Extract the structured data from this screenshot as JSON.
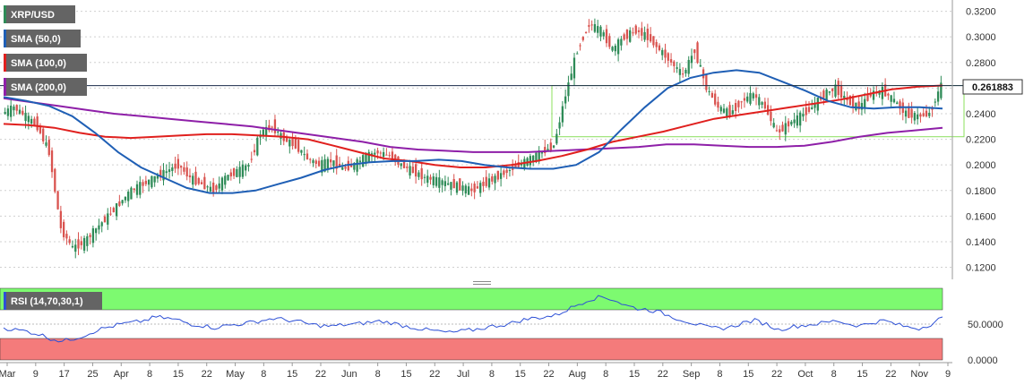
{
  "legend": {
    "symbol": "XRP/USD",
    "sma50": "SMA (50,0)",
    "sma100": "SMA (100,0)",
    "sma200": "SMA (200,0)",
    "rsi": "RSI (14,70,30,1)"
  },
  "colors": {
    "up": "#2e8b57",
    "down": "#d9534f",
    "sma50": "#1f5fb5",
    "sma100": "#e0201e",
    "sma200": "#8e1fa8",
    "rsi_line": "#2c4fd6",
    "overbought": "#7dfa70",
    "oversold": "#f47b7b",
    "box": "#8be05e"
  },
  "price_badge": "0.261883",
  "chart_data": {
    "type": "candlestick",
    "y_ticks": [
      "0.3200",
      "0.3000",
      "0.2800",
      "0.2600",
      "0.2400",
      "0.2200",
      "0.2000",
      "0.1800",
      "0.1600",
      "0.1400",
      "0.1200"
    ],
    "ylim": [
      0.112,
      0.326
    ],
    "x_ticks": [
      "Mar",
      "9",
      "17",
      "25",
      "Apr",
      "8",
      "15",
      "22",
      "May",
      "8",
      "15",
      "22",
      "Jun",
      "8",
      "15",
      "22",
      "Jul",
      "8",
      "15",
      "22",
      "Aug",
      "8",
      "15",
      "22",
      "Sep",
      "8",
      "15",
      "22",
      "Oct",
      "8",
      "15",
      "22",
      "Nov",
      "9"
    ],
    "close_path": [
      0.24,
      0.245,
      0.238,
      0.23,
      0.21,
      0.15,
      0.135,
      0.14,
      0.15,
      0.16,
      0.17,
      0.18,
      0.185,
      0.19,
      0.195,
      0.2,
      0.19,
      0.185,
      0.18,
      0.19,
      0.195,
      0.2,
      0.225,
      0.23,
      0.22,
      0.215,
      0.205,
      0.2,
      0.203,
      0.197,
      0.2,
      0.207,
      0.21,
      0.207,
      0.2,
      0.195,
      0.19,
      0.188,
      0.185,
      0.183,
      0.18,
      0.185,
      0.19,
      0.195,
      0.2,
      0.205,
      0.21,
      0.215,
      0.255,
      0.29,
      0.31,
      0.305,
      0.29,
      0.3,
      0.305,
      0.3,
      0.29,
      0.28,
      0.27,
      0.29,
      0.26,
      0.245,
      0.24,
      0.25,
      0.255,
      0.245,
      0.225,
      0.232,
      0.238,
      0.245,
      0.255,
      0.26,
      0.25,
      0.245,
      0.255,
      0.258,
      0.25,
      0.24,
      0.238,
      0.24,
      0.262
    ],
    "sma50": [
      0.253,
      0.25,
      0.246,
      0.238,
      0.225,
      0.21,
      0.198,
      0.19,
      0.182,
      0.178,
      0.178,
      0.18,
      0.185,
      0.19,
      0.196,
      0.2,
      0.202,
      0.203,
      0.203,
      0.204,
      0.203,
      0.2,
      0.198,
      0.197,
      0.197,
      0.2,
      0.21,
      0.228,
      0.245,
      0.26,
      0.268,
      0.272,
      0.274,
      0.272,
      0.265,
      0.258,
      0.25,
      0.245,
      0.244,
      0.245,
      0.245,
      0.244
    ],
    "sma100": [
      0.232,
      0.231,
      0.229,
      0.225,
      0.222,
      0.221,
      0.222,
      0.223,
      0.224,
      0.224,
      0.223,
      0.222,
      0.22,
      0.215,
      0.21,
      0.205,
      0.203,
      0.2,
      0.198,
      0.198,
      0.2,
      0.203,
      0.207,
      0.212,
      0.218,
      0.222,
      0.226,
      0.231,
      0.236,
      0.239,
      0.242,
      0.245,
      0.248,
      0.251,
      0.255,
      0.259,
      0.261,
      0.262
    ],
    "sma200": [
      0.252,
      0.249,
      0.246,
      0.243,
      0.24,
      0.238,
      0.236,
      0.234,
      0.232,
      0.23,
      0.227,
      0.224,
      0.221,
      0.218,
      0.214,
      0.212,
      0.211,
      0.21,
      0.21,
      0.21,
      0.211,
      0.212,
      0.213,
      0.214,
      0.216,
      0.216,
      0.215,
      0.214,
      0.214,
      0.215,
      0.218,
      0.222,
      0.225,
      0.227,
      0.229
    ],
    "rsi": {
      "y_ticks": [
        "50.0000",
        "0.0000"
      ],
      "overbought": 70,
      "oversold": 30,
      "values": [
        45,
        42,
        40,
        36,
        30,
        26,
        30,
        35,
        42,
        46,
        50,
        52,
        55,
        60,
        58,
        55,
        50,
        48,
        45,
        48,
        50,
        52,
        55,
        58,
        56,
        54,
        50,
        48,
        47,
        49,
        50,
        52,
        54,
        52,
        48,
        45,
        42,
        40,
        38,
        40,
        42,
        45,
        48,
        50,
        55,
        58,
        60,
        62,
        70,
        78,
        85,
        88,
        84,
        76,
        72,
        70,
        66,
        60,
        55,
        50,
        45,
        44,
        46,
        52,
        55,
        50,
        42,
        46,
        48,
        50,
        52,
        55,
        50,
        48,
        52,
        55,
        50,
        46,
        44,
        50,
        60
      ]
    }
  }
}
